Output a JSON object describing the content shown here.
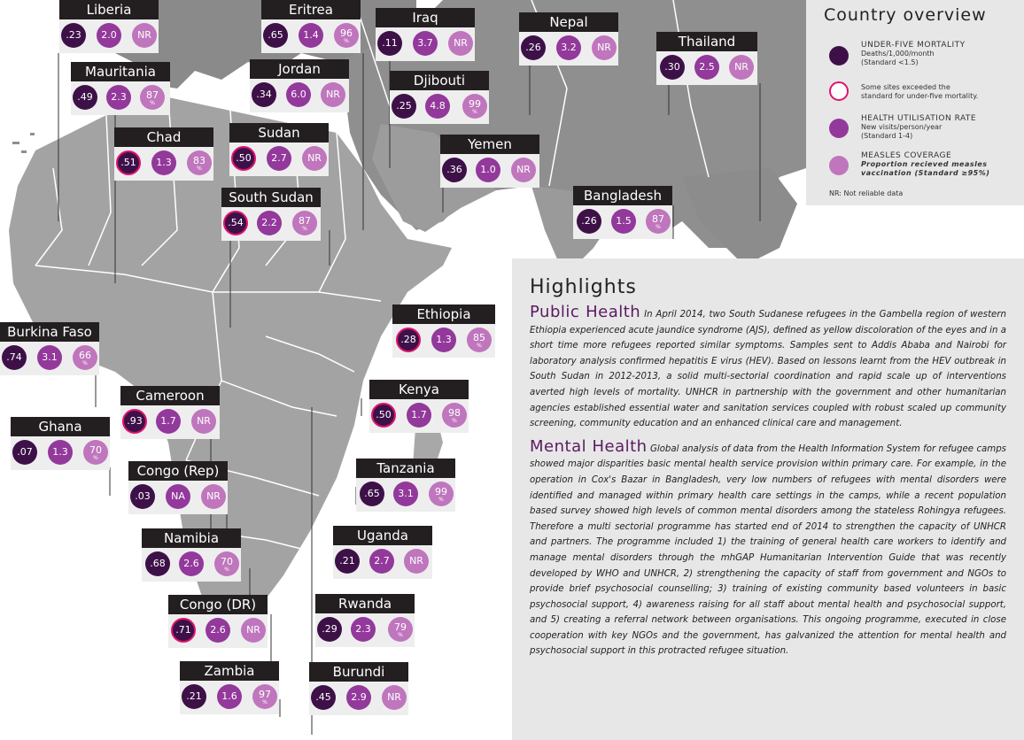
{
  "legend": {
    "title": "Country overview",
    "u5_label": "UNDER-FIVE MORTALITY",
    "u5_sub1": "Deaths/1,000/month",
    "u5_sub2": "(Standard <1.5)",
    "exceed_text1": "Some sites exceeded the",
    "exceed_text2": "standard for under-five mortality.",
    "hu_label": "HEALTH UTILISATION RATE",
    "hu_sub1": "New visits/person/year",
    "hu_sub2": "(Standard 1-4)",
    "mc_label": "MEASLES COVERAGE",
    "mc_sub1": "Proportion recieved measles",
    "mc_sub2": "vaccination (Standard ≥95%)",
    "nr_note": "NR: Not reliable data",
    "colors": {
      "u5": "#3d1148",
      "hu": "#93399b",
      "mc": "#bf76bd",
      "exceed": "#e0146e"
    }
  },
  "countries": [
    {
      "name": "Liberia",
      "u5": ".23",
      "hu": "2.0",
      "mc": "NR",
      "exceed": false
    },
    {
      "name": "Eritrea",
      "u5": ".65",
      "hu": "1.4",
      "mc": "96",
      "exceed": false
    },
    {
      "name": "Iraq",
      "u5": ".11",
      "hu": "3.7",
      "mc": "NR",
      "exceed": false
    },
    {
      "name": "Nepal",
      "u5": ".26",
      "hu": "3.2",
      "mc": "NR",
      "exceed": false
    },
    {
      "name": "Thailand",
      "u5": ".30",
      "hu": "2.5",
      "mc": "NR",
      "exceed": false
    },
    {
      "name": "Mauritania",
      "u5": ".49",
      "hu": "2.3",
      "mc": "87",
      "exceed": false
    },
    {
      "name": "Jordan",
      "u5": ".34",
      "hu": "6.0",
      "mc": "NR",
      "exceed": false
    },
    {
      "name": "Djibouti",
      "u5": ".25",
      "hu": "4.8",
      "mc": "99",
      "exceed": false
    },
    {
      "name": "Chad",
      "u5": ".51",
      "hu": "1.3",
      "mc": "83",
      "exceed": true
    },
    {
      "name": "Sudan",
      "u5": ".50",
      "hu": "2.7",
      "mc": "NR",
      "exceed": true
    },
    {
      "name": "Yemen",
      "u5": ".36",
      "hu": "1.0",
      "mc": "NR",
      "exceed": false
    },
    {
      "name": "South Sudan",
      "u5": ".54",
      "hu": "2.2",
      "mc": "87",
      "exceed": true
    },
    {
      "name": "Bangladesh",
      "u5": ".26",
      "hu": "1.5",
      "mc": "87",
      "exceed": false
    },
    {
      "name": "Ethiopia",
      "u5": ".28",
      "hu": "1.3",
      "mc": "85",
      "exceed": true
    },
    {
      "name": "Burkina Faso",
      "u5": ".74",
      "hu": "3.1",
      "mc": "66",
      "exceed": false
    },
    {
      "name": "Cameroon",
      "u5": ".93",
      "hu": "1.7",
      "mc": "NR",
      "exceed": true
    },
    {
      "name": "Kenya",
      "u5": ".50",
      "hu": "1.7",
      "mc": "98",
      "exceed": true
    },
    {
      "name": "Ghana",
      "u5": ".07",
      "hu": "1.3",
      "mc": "70",
      "exceed": false
    },
    {
      "name": "Congo (Rep)",
      "u5": ".03",
      "hu": "NA",
      "mc": "NR",
      "exceed": false
    },
    {
      "name": "Tanzania",
      "u5": ".65",
      "hu": "3.1",
      "mc": "99",
      "exceed": false
    },
    {
      "name": "Namibia",
      "u5": ".68",
      "hu": "2.6",
      "mc": "70",
      "exceed": false
    },
    {
      "name": "Uganda",
      "u5": ".21",
      "hu": "2.7",
      "mc": "NR",
      "exceed": false
    },
    {
      "name": "Congo (DR)",
      "u5": ".71",
      "hu": "2.6",
      "mc": "NR",
      "exceed": true
    },
    {
      "name": "Rwanda",
      "u5": ".29",
      "hu": "2.3",
      "mc": "79",
      "exceed": false
    },
    {
      "name": "Zambia",
      "u5": ".21",
      "hu": "1.6",
      "mc": "97",
      "exceed": false
    },
    {
      "name": "Burundi",
      "u5": ".45",
      "hu": "2.9",
      "mc": "NR",
      "exceed": false
    }
  ],
  "highlights": {
    "title": "Highlights",
    "public_health_title": "Public Health",
    "public_health_text": "In April 2014, two South Sudanese refugees in the Gambella region of western Ethiopia experienced acute jaundice syndrome (AJS), defined as yellow discoloration of the eyes and in a short time more refugees reported similar symptoms. Samples sent to Addis Ababa and Nairobi for laboratory analysis confirmed hepatitis E virus (HEV). Based on lessons learnt from the HEV outbreak in South Sudan in 2012-2013, a solid multi-sectorial coordination and rapid scale up of interventions averted high levels of mortality. UNHCR in partnership with the government and other humanitarian agencies established essential water and sanitation services coupled with robust scaled up community screening, community education and an enhanced clinical care and management.",
    "mental_health_title": "Mental Health",
    "mental_health_text": "Global analysis of data from the Health Information System for refugee camps showed major disparities basic mental health service provision within primary care. For example, in the operation in Cox's Bazar in Bangladesh, very low numbers of refugees with mental disorders were identified and managed within primary health care settings in the camps, while a recent population based survey showed high levels of common mental disorders among the stateless Rohingya refugees. Therefore a multi sectorial programme has started end of 2014 to strengthen the capacity of UNHCR and partners. The programme included 1) the training of general health care workers to identify and manage mental disorders through the mhGAP Humanitarian Intervention Guide that was recently developed by WHO and UNHCR, 2) strengthening the capacity of staff from government and NGOs to provide brief psychosocial counselling; 3) training of existing community based volunteers in basic psychosocial support, 4) awareness raising for all staff about mental health and psychosocial support, and 5) creating a referral network between organisations. This ongoing programme, executed in close cooperation with key NGOs and the government, has galvanized the attention for mental health and psychosocial support in this protracted refugee situation."
  }
}
